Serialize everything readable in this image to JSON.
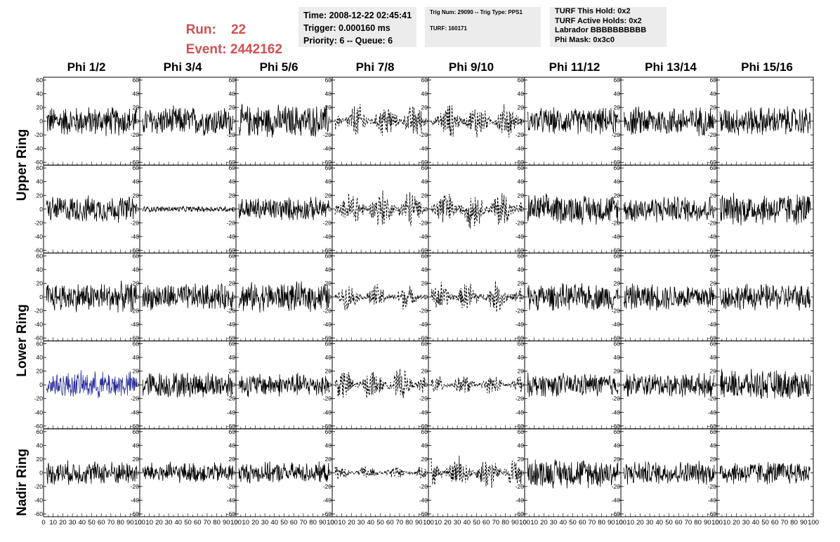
{
  "header": {
    "run_label": "Run:",
    "run_value": "22",
    "event_label": "Event:",
    "event_value": "2442162"
  },
  "info_box_1": {
    "time": "Time: 2008-12-22 02:45:41",
    "trigger": "Trigger: 0.000160 ms",
    "priority": "Priority: 6 -- Queue: 6"
  },
  "info_box_2": {
    "trig": "Trig Num: 29090 -- Trig Type: PPS1",
    "turf": "TURF: 160171"
  },
  "info_box_3": {
    "this_hold": "TURF This Hold: 0x2",
    "active_holds": "TURF Active Holds: 0x2",
    "labrador": "Labrador BBBBBBBBBB",
    "phi_mask": "Phi Mask: 0x3c0"
  },
  "columns": [
    "Phi 1/2",
    "Phi 3/4",
    "Phi 5/6",
    "Phi 7/8",
    "Phi 9/10",
    "Phi 11/12",
    "Phi 13/14",
    "Phi 15/16"
  ],
  "rings": [
    {
      "label": "Upper Ring"
    },
    {
      "label": "Lower Ring"
    },
    {
      "label": "Nadir Ring"
    }
  ],
  "chart_data": {
    "type": "line",
    "grid": false,
    "rows": 5,
    "cols": 8,
    "xlim": [
      0,
      100
    ],
    "ylim": [
      -60,
      60
    ],
    "y_ticks": [
      -60,
      -40,
      -20,
      0,
      20,
      40,
      60
    ],
    "x_ticks": [
      0,
      10,
      20,
      30,
      40,
      50,
      60,
      70,
      80,
      90,
      100
    ],
    "x_tick_labels_row": "bottom",
    "dashed_cells": [
      [
        0,
        3
      ],
      [
        0,
        4
      ],
      [
        1,
        3
      ],
      [
        1,
        4
      ],
      [
        2,
        3
      ],
      [
        2,
        4
      ],
      [
        3,
        3
      ],
      [
        3,
        4
      ],
      [
        4,
        3
      ],
      [
        4,
        4
      ]
    ],
    "highlight_cells": [
      [
        3,
        0
      ]
    ],
    "highlight_color": "#2a2f9a",
    "trace_color": "#000000",
    "flat_cells": [
      [
        1,
        1
      ]
    ],
    "amplitude": [
      [
        20,
        20,
        22,
        25,
        25,
        18,
        20,
        20
      ],
      [
        18,
        4,
        16,
        28,
        28,
        20,
        18,
        22
      ],
      [
        20,
        18,
        20,
        18,
        22,
        18,
        18,
        18
      ],
      [
        18,
        18,
        16,
        22,
        14,
        16,
        16,
        20
      ],
      [
        16,
        14,
        14,
        10,
        25,
        20,
        16,
        16
      ]
    ]
  }
}
